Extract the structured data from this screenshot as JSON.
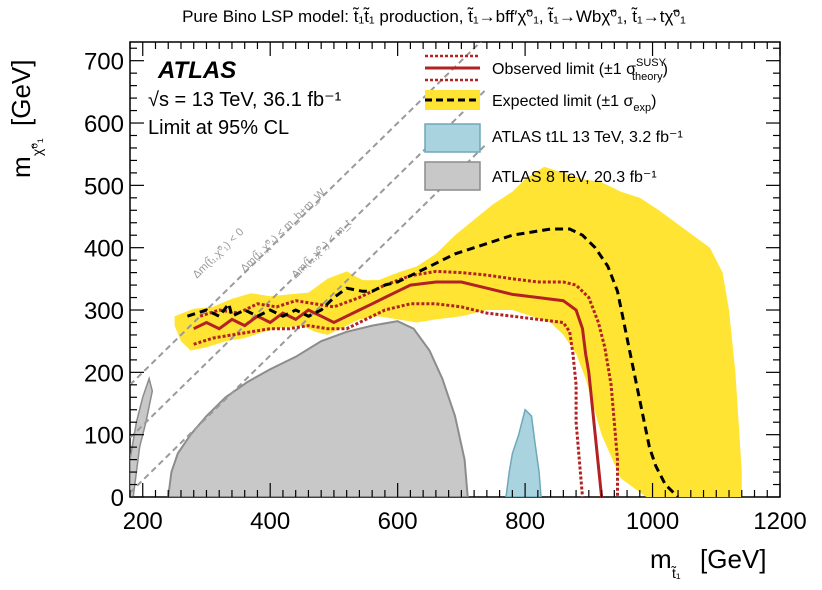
{
  "chart_data": {
    "type": "area",
    "title": "Pure Bino LSP model: t̃₁t̃₁ production, t̃₁→bff′χ̃⁰₁, t̃₁→Wbχ̃⁰₁, t̃₁→tχ̃⁰₁",
    "xlabel": "m_t̃1 [GeV]",
    "ylabel": "m_χ̃⁰1 [GeV]",
    "xlabel_main": "m",
    "xlabel_sub": "t̃₁",
    "xlabel_unit": "[GeV]",
    "ylabel_main": "m",
    "ylabel_sub": "χ̃⁰₁",
    "ylabel_unit": "[GeV]",
    "xlim": [
      180,
      1200
    ],
    "ylim": [
      0,
      730
    ],
    "xticks": [
      200,
      400,
      600,
      800,
      1000,
      1200
    ],
    "yticks": [
      0,
      100,
      200,
      300,
      400,
      500,
      600,
      700
    ],
    "atlas_label": "ATLAS",
    "energy_label": "√s = 13 TeV, 36.1 fb⁻¹",
    "cl_label": "Limit at 95% CL",
    "legend_position": "top-right",
    "legend": [
      {
        "key": "observed",
        "label": "Observed limit (±1 σ",
        "sup": "SUSY",
        "sub": "theory",
        "tail": ")"
      },
      {
        "key": "expected",
        "label": "Expected limit (±1 σ",
        "sub": "exp",
        "tail": ")"
      },
      {
        "key": "t1l",
        "label": "ATLAS t1L 13 TeV, 3.2 fb⁻¹"
      },
      {
        "key": "run1",
        "label": "ATLAS 8 TeV, 20.3 fb⁻¹"
      }
    ],
    "diagonals": [
      {
        "label": "Δm(t̃₁,χ̃⁰₁) < 0",
        "offset": 0
      },
      {
        "label": "Δm(t̃₁,χ̃⁰₁) < m_b+m_W",
        "offset": 85
      },
      {
        "label": "Δm(t̃₁,χ̃⁰₁) < m_t",
        "offset": 173
      }
    ],
    "colors": {
      "observed": "#b22222",
      "expected": "#000000",
      "expected_band": "#ffe433",
      "t1l": "#a8d3df",
      "t1l_edge": "#6fa8bb",
      "run1": "#c8c8c8",
      "run1_edge": "#8c8c8c",
      "diagonal": "#9a9a9a"
    },
    "series": {
      "expected_band": [
        [
          250,
          290
        ],
        [
          280,
          302
        ],
        [
          310,
          305
        ],
        [
          340,
          318
        ],
        [
          370,
          327
        ],
        [
          400,
          322
        ],
        [
          430,
          325
        ],
        [
          460,
          328
        ],
        [
          490,
          350
        ],
        [
          520,
          362
        ],
        [
          545,
          348
        ],
        [
          570,
          348
        ],
        [
          600,
          360
        ],
        [
          630,
          370
        ],
        [
          660,
          390
        ],
        [
          690,
          420
        ],
        [
          720,
          445
        ],
        [
          750,
          470
        ],
        [
          780,
          490
        ],
        [
          800,
          510
        ],
        [
          830,
          530
        ],
        [
          860,
          520
        ],
        [
          890,
          510
        ],
        [
          920,
          505
        ],
        [
          950,
          490
        ],
        [
          980,
          480
        ],
        [
          1010,
          460
        ],
        [
          1050,
          430
        ],
        [
          1090,
          400
        ],
        [
          1110,
          360
        ],
        [
          1120,
          300
        ],
        [
          1130,
          200
        ],
        [
          1135,
          120
        ],
        [
          1140,
          40
        ],
        [
          1140,
          0
        ],
        [
          1100,
          0
        ],
        [
          1060,
          0
        ],
        [
          1020,
          0
        ],
        [
          990,
          0
        ],
        [
          950,
          30
        ],
        [
          920,
          100
        ],
        [
          895,
          190
        ],
        [
          880,
          230
        ],
        [
          860,
          260
        ],
        [
          840,
          280
        ],
        [
          810,
          290
        ],
        [
          780,
          300
        ],
        [
          740,
          300
        ],
        [
          700,
          290
        ],
        [
          660,
          285
        ],
        [
          630,
          280
        ],
        [
          600,
          285
        ],
        [
          570,
          290
        ],
        [
          540,
          285
        ],
        [
          510,
          270
        ],
        [
          490,
          260
        ],
        [
          470,
          265
        ],
        [
          450,
          275
        ],
        [
          420,
          272
        ],
        [
          390,
          265
        ],
        [
          360,
          255
        ],
        [
          330,
          250
        ],
        [
          300,
          240
        ],
        [
          275,
          235
        ],
        [
          260,
          250
        ],
        [
          250,
          275
        ]
      ],
      "expected": [
        [
          270,
          290
        ],
        [
          300,
          300
        ],
        [
          320,
          290
        ],
        [
          335,
          310
        ],
        [
          340,
          290
        ],
        [
          360,
          300
        ],
        [
          380,
          290
        ],
        [
          400,
          300
        ],
        [
          420,
          290
        ],
        [
          440,
          300
        ],
        [
          460,
          290
        ],
        [
          480,
          300
        ],
        [
          500,
          320
        ],
        [
          520,
          335
        ],
        [
          545,
          330
        ],
        [
          560,
          330
        ],
        [
          580,
          340
        ],
        [
          600,
          345
        ],
        [
          630,
          360
        ],
        [
          660,
          375
        ],
        [
          690,
          390
        ],
        [
          720,
          400
        ],
        [
          750,
          410
        ],
        [
          780,
          420
        ],
        [
          810,
          425
        ],
        [
          840,
          430
        ],
        [
          870,
          430
        ],
        [
          890,
          420
        ],
        [
          910,
          400
        ],
        [
          930,
          370
        ],
        [
          945,
          330
        ],
        [
          955,
          280
        ],
        [
          965,
          230
        ],
        [
          975,
          180
        ],
        [
          985,
          130
        ],
        [
          995,
          80
        ],
        [
          1005,
          50
        ],
        [
          1020,
          20
        ],
        [
          1040,
          0
        ]
      ],
      "observed": [
        [
          280,
          270
        ],
        [
          300,
          280
        ],
        [
          320,
          270
        ],
        [
          340,
          285
        ],
        [
          360,
          275
        ],
        [
          380,
          290
        ],
        [
          400,
          280
        ],
        [
          420,
          295
        ],
        [
          440,
          285
        ],
        [
          460,
          300
        ],
        [
          480,
          290
        ],
        [
          500,
          280
        ],
        [
          520,
          290
        ],
        [
          540,
          300
        ],
        [
          560,
          310
        ],
        [
          580,
          320
        ],
        [
          600,
          330
        ],
        [
          620,
          340
        ],
        [
          660,
          345
        ],
        [
          700,
          345
        ],
        [
          740,
          335
        ],
        [
          780,
          325
        ],
        [
          820,
          320
        ],
        [
          860,
          315
        ],
        [
          880,
          300
        ],
        [
          890,
          270
        ],
        [
          895,
          230
        ],
        [
          900,
          200
        ],
        [
          905,
          150
        ],
        [
          910,
          100
        ],
        [
          915,
          50
        ],
        [
          920,
          0
        ]
      ],
      "observed_up": [
        [
          290,
          290
        ],
        [
          320,
          300
        ],
        [
          350,
          295
        ],
        [
          380,
          310
        ],
        [
          410,
          305
        ],
        [
          440,
          315
        ],
        [
          470,
          310
        ],
        [
          500,
          305
        ],
        [
          540,
          320
        ],
        [
          580,
          340
        ],
        [
          620,
          355
        ],
        [
          660,
          362
        ],
        [
          700,
          360
        ],
        [
          740,
          356
        ],
        [
          780,
          350
        ],
        [
          820,
          345
        ],
        [
          860,
          345
        ],
        [
          880,
          340
        ],
        [
          900,
          320
        ],
        [
          915,
          280
        ],
        [
          925,
          240
        ],
        [
          935,
          180
        ],
        [
          940,
          120
        ],
        [
          945,
          60
        ],
        [
          945,
          0
        ]
      ],
      "observed_down": [
        [
          280,
          245
        ],
        [
          310,
          255
        ],
        [
          340,
          260
        ],
        [
          370,
          265
        ],
        [
          400,
          270
        ],
        [
          430,
          270
        ],
        [
          460,
          275
        ],
        [
          490,
          270
        ],
        [
          520,
          270
        ],
        [
          550,
          285
        ],
        [
          580,
          300
        ],
        [
          620,
          310
        ],
        [
          660,
          310
        ],
        [
          700,
          305
        ],
        [
          740,
          295
        ],
        [
          780,
          290
        ],
        [
          820,
          285
        ],
        [
          860,
          280
        ],
        [
          870,
          265
        ],
        [
          875,
          230
        ],
        [
          880,
          180
        ],
        [
          880,
          120
        ],
        [
          885,
          60
        ],
        [
          890,
          0
        ]
      ],
      "t1l": [
        [
          770,
          0
        ],
        [
          775,
          40
        ],
        [
          780,
          70
        ],
        [
          790,
          100
        ],
        [
          800,
          140
        ],
        [
          810,
          130
        ],
        [
          815,
          90
        ],
        [
          822,
          40
        ],
        [
          825,
          0
        ]
      ],
      "run1": [
        [
          240,
          0
        ],
        [
          245,
          40
        ],
        [
          255,
          70
        ],
        [
          275,
          100
        ],
        [
          300,
          130
        ],
        [
          330,
          160
        ],
        [
          365,
          185
        ],
        [
          400,
          205
        ],
        [
          440,
          225
        ],
        [
          480,
          250
        ],
        [
          520,
          265
        ],
        [
          560,
          275
        ],
        [
          600,
          282
        ],
        [
          625,
          270
        ],
        [
          650,
          235
        ],
        [
          670,
          190
        ],
        [
          690,
          130
        ],
        [
          705,
          60
        ],
        [
          710,
          0
        ]
      ],
      "run1_small": [
        [
          180,
          60
        ],
        [
          190,
          120
        ],
        [
          200,
          160
        ],
        [
          210,
          190
        ],
        [
          215,
          170
        ],
        [
          205,
          120
        ],
        [
          195,
          80
        ],
        [
          190,
          40
        ],
        [
          185,
          0
        ],
        [
          180,
          0
        ]
      ]
    }
  }
}
